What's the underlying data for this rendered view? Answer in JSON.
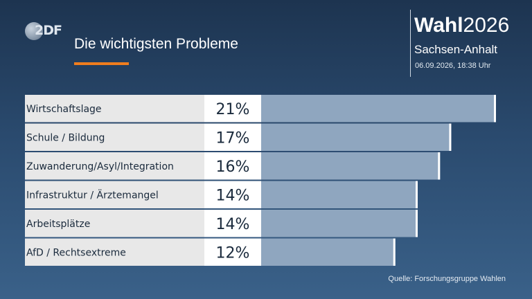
{
  "header": {
    "logo_text": "2DF",
    "title": "Die wichtigsten Probleme",
    "brand_bold": "Wahl",
    "brand_year": "2026",
    "region": "Sachsen-Anhalt",
    "timestamp": "06.09.2026, 18:38 Uhr"
  },
  "footer": {
    "source": "Quelle: Forschungsgruppe Wahlen"
  },
  "colors": {
    "accent_underline": "#f07d1e",
    "bar_fill": "#8fa6bf",
    "label_bg": "#e8e8e8",
    "value_bg": "#ffffff",
    "row_text": "#1a2a3c"
  },
  "chart_data": {
    "type": "bar",
    "orientation": "horizontal",
    "categories": [
      "Wirtschaftslage",
      "Schule / Bildung",
      "Zuwanderung/Asyl/Integration",
      "Infrastruktur / Ärztemangel",
      "Arbeitsplätze",
      "AfD / Rechtsextreme"
    ],
    "values": [
      21,
      17,
      16,
      14,
      14,
      12
    ],
    "value_labels": [
      "21%",
      "17%",
      "16%",
      "14%",
      "14%",
      "12%"
    ],
    "unit": "%",
    "xlim": [
      0,
      21
    ],
    "grid": false,
    "legend": "none"
  }
}
